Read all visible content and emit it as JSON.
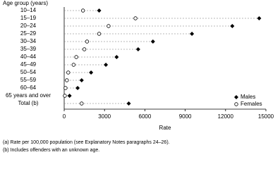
{
  "chart_data": {
    "type": "dot",
    "y_axis_title": "Age group (years)",
    "x_axis_title": "Rate",
    "categories": [
      "10–14",
      "15–19",
      "20–24",
      "25–29",
      "30–34",
      "35–39",
      "40–44",
      "45–49",
      "50–54",
      "55–59",
      "60–64",
      "65 years and over",
      "Total (b)"
    ],
    "series": [
      {
        "name": "Males",
        "color": "#000000",
        "marker": "diamond",
        "values": [
          2600,
          14500,
          12500,
          9500,
          6600,
          5500,
          3900,
          3100,
          2000,
          1300,
          1000,
          400,
          4800
        ]
      },
      {
        "name": "Females",
        "color": "#000000",
        "marker": "open-circle",
        "values": [
          1400,
          5300,
          3300,
          2600,
          1700,
          1500,
          900,
          700,
          300,
          200,
          100,
          50,
          1300
        ]
      }
    ],
    "xlim": [
      0,
      15000
    ],
    "xticks": [
      0,
      3000,
      6000,
      9000,
      12000,
      15000
    ],
    "legend": "bottom-right",
    "footnotes": [
      "(a) Rate per 100,000 population (see Explanatory Notes paragraphs 24–26).",
      "(b) Includes offenders with an unknown age."
    ]
  }
}
